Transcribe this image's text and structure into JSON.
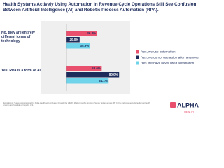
{
  "chart_data": {
    "type": "bar",
    "orientation": "horizontal",
    "title": "Health Systems Actively Using Automation in Revenue Cycle Operations Still See Confusion Between Artificial Intelligence (AI) and Robotic Process Automation (RPA).",
    "categories": [
      "No, they are entirely different forms of technology",
      "Yes, RPA is a form of AI"
    ],
    "series": [
      {
        "name": "Yes, we use automation",
        "color": "#e9506e",
        "values": [
          46.4,
          53.6
        ],
        "value_labels": [
          "46.4%",
          "53.6%"
        ]
      },
      {
        "name": "Yes, we do not use automation anymore",
        "color": "#1c2b5a",
        "values": [
          20.0,
          80.0
        ],
        "value_labels": [
          "20.0%",
          "80.0%"
        ]
      },
      {
        "name": "Yes, we have never used automation",
        "color": "#6fd3ea",
        "values": [
          35.9,
          64.1
        ],
        "value_labels": [
          "35.9%",
          "64.1%"
        ]
      }
    ],
    "xlim": [
      0,
      100
    ],
    "legend": "right",
    "footnote": "Methodology: Survey commissioned by Alpha Health and conducted through the HIMSS Market Insights program. Survey fielded among 387 CFOs and revenue cycle leaders at health systems and hospitals across the U.S.",
    "logo": {
      "name": "ALPHA",
      "sub": "HEALTH"
    }
  }
}
